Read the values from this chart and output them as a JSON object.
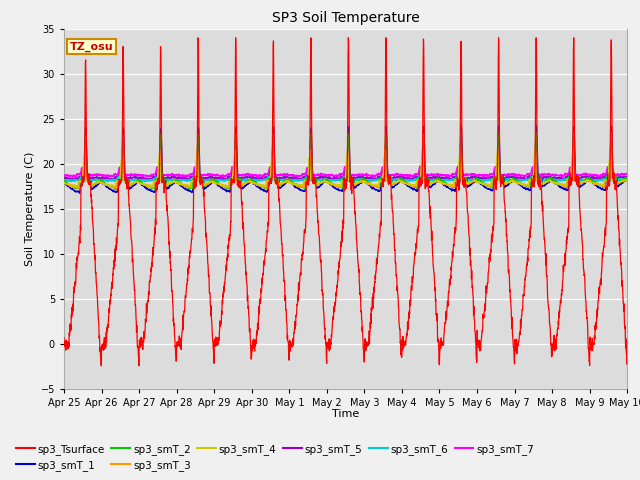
{
  "title": "SP3 Soil Temperature",
  "ylabel": "Soil Temperature (C)",
  "xlabel": "Time",
  "timezone_label": "TZ_osu",
  "ylim": [
    -5,
    35
  ],
  "yticks": [
    -5,
    0,
    5,
    10,
    15,
    20,
    25,
    30,
    35
  ],
  "n_days": 15,
  "background_color": "#dcdcdc",
  "fig_facecolor": "#f0f0f0",
  "series_colors": {
    "sp3_Tsurface": "#ff0000",
    "sp3_smT_1": "#0000cc",
    "sp3_smT_2": "#00cc00",
    "sp3_smT_3": "#ff9900",
    "sp3_smT_4": "#cccc00",
    "sp3_smT_5": "#9900cc",
    "sp3_smT_6": "#00cccc",
    "sp3_smT_7": "#ff00ff"
  },
  "x_tick_labels": [
    "Apr 25",
    "Apr 26",
    "Apr 27",
    "Apr 28",
    "Apr 29",
    "Apr 30",
    "May 1",
    "May 2",
    "May 3",
    "May 4",
    "May 5",
    "May 6",
    "May 7",
    "May 8",
    "May 9",
    "May 10"
  ],
  "legend_entries": [
    {
      "label": "sp3_Tsurface",
      "color": "#ff0000"
    },
    {
      "label": "sp3_smT_1",
      "color": "#0000cc"
    },
    {
      "label": "sp3_smT_2",
      "color": "#00cc00"
    },
    {
      "label": "sp3_smT_3",
      "color": "#ff9900"
    },
    {
      "label": "sp3_smT_4",
      "color": "#cccc00"
    },
    {
      "label": "sp3_smT_5",
      "color": "#9900cc"
    },
    {
      "label": "sp3_smT_6",
      "color": "#00cccc"
    },
    {
      "label": "sp3_smT_7",
      "color": "#ff00ff"
    }
  ]
}
